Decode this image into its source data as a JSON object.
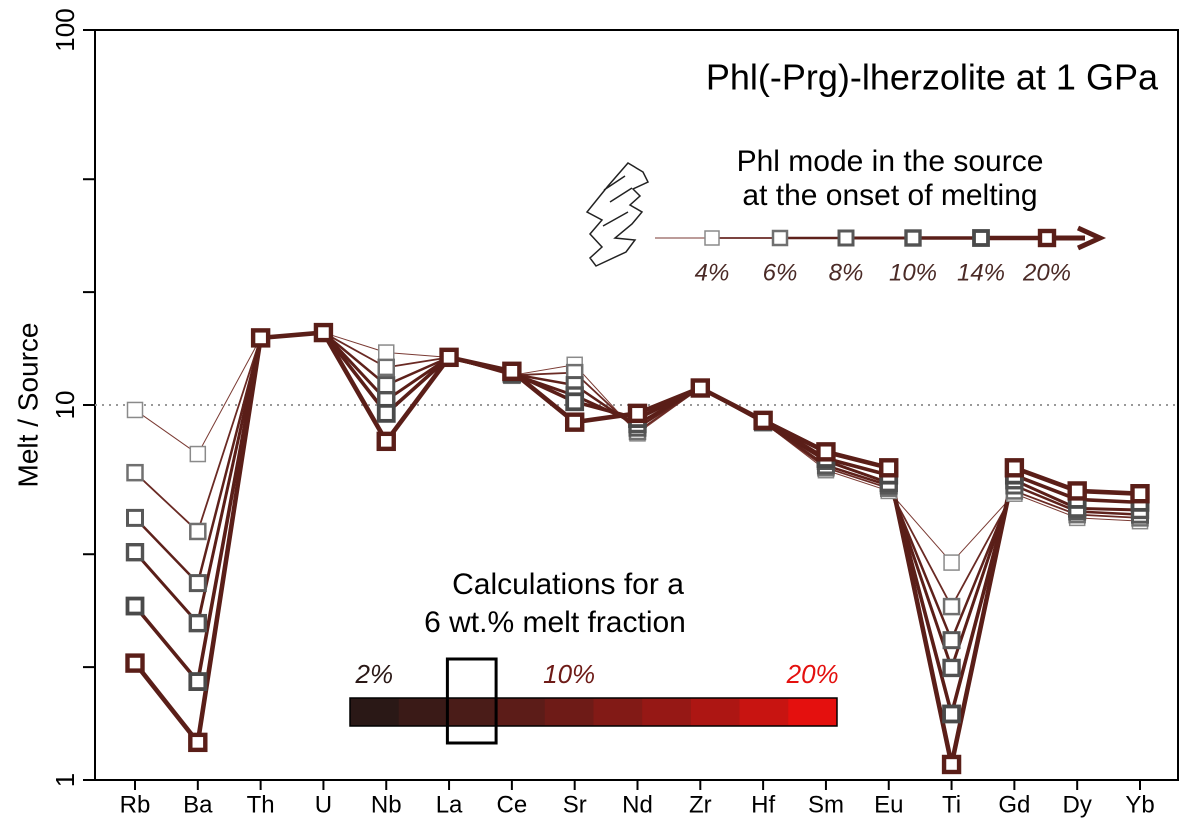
{
  "chart_data": {
    "type": "line",
    "title": "Phl(-Prg)-lherzolite at 1 GPa",
    "y_label": "Melt / Source",
    "log_y": true,
    "ylim": [
      1,
      100
    ],
    "yticks": [
      1,
      10,
      100
    ],
    "yminor": [
      2,
      4,
      20,
      40
    ],
    "reference_line": 10,
    "categories": [
      "Rb",
      "Ba",
      "Th",
      "U",
      "Nb",
      "La",
      "Ce",
      "Sr",
      "Nd",
      "Zr",
      "Hf",
      "Sm",
      "Eu",
      "Ti",
      "Gd",
      "Dy",
      "Yb"
    ],
    "legend_title": [
      "Phl mode in the source",
      "at the onset of melting"
    ],
    "series": [
      {
        "name": "4%",
        "color": "#7a3a33",
        "marker_color": "#8a8a8a",
        "values": [
          9.7,
          7.4,
          15.1,
          15.6,
          13.8,
          13.4,
          12.0,
          12.8,
          8.4,
          11.1,
          9.0,
          6.7,
          5.9,
          3.8,
          5.8,
          5.0,
          4.9
        ]
      },
      {
        "name": "6%",
        "color": "#6a2a24",
        "marker_color": "#707070",
        "values": [
          6.6,
          4.6,
          15.1,
          15.6,
          12.6,
          13.4,
          12.0,
          12.2,
          8.5,
          11.1,
          9.0,
          6.8,
          6.0,
          2.9,
          5.9,
          5.1,
          5.0
        ]
      },
      {
        "name": "8%",
        "color": "#5e211b",
        "marker_color": "#585858",
        "values": [
          5.0,
          3.35,
          15.1,
          15.6,
          11.3,
          13.4,
          12.1,
          11.3,
          8.7,
          11.1,
          9.0,
          6.9,
          6.1,
          2.36,
          6.1,
          5.2,
          5.1
        ]
      },
      {
        "name": "10%",
        "color": "#5a1e18",
        "marker_color": "#525252",
        "values": [
          4.05,
          2.62,
          15.1,
          15.6,
          10.3,
          13.4,
          12.1,
          10.6,
          8.9,
          11.1,
          9.0,
          7.1,
          6.2,
          1.99,
          6.3,
          5.3,
          5.25
        ]
      },
      {
        "name": "14%",
        "color": "#5a1e18",
        "marker_color": "#4a4a4a",
        "values": [
          2.91,
          1.83,
          15.1,
          15.6,
          9.5,
          13.4,
          12.2,
          10.2,
          9.2,
          11.1,
          9.1,
          7.2,
          6.5,
          1.5,
          6.5,
          5.6,
          5.5
        ]
      },
      {
        "name": "20%",
        "color": "#5a1e18",
        "marker_color": "#5a1e18",
        "values": [
          2.05,
          1.26,
          15.1,
          15.6,
          8.0,
          13.4,
          12.3,
          9.0,
          9.5,
          11.1,
          9.1,
          7.5,
          6.8,
          1.1,
          6.8,
          5.9,
          5.8
        ]
      }
    ],
    "annotation": [
      "Calculations for a",
      "6 wt.% melt fraction"
    ],
    "colorbar": {
      "values": [
        2,
        4,
        6,
        8,
        10,
        12,
        14,
        16,
        18,
        20
      ],
      "colors": [
        "#2a1816",
        "#3a1a17",
        "#4a1c18",
        "#5c1c18",
        "#6e1b17",
        "#821a16",
        "#961815",
        "#ad1613",
        "#c81411",
        "#e4100e"
      ],
      "ticks": [
        {
          "value": 2,
          "label": "2%"
        },
        {
          "value": 10,
          "label": "10%"
        },
        {
          "value": 20,
          "label": "20%"
        }
      ],
      "selected": 6
    }
  }
}
